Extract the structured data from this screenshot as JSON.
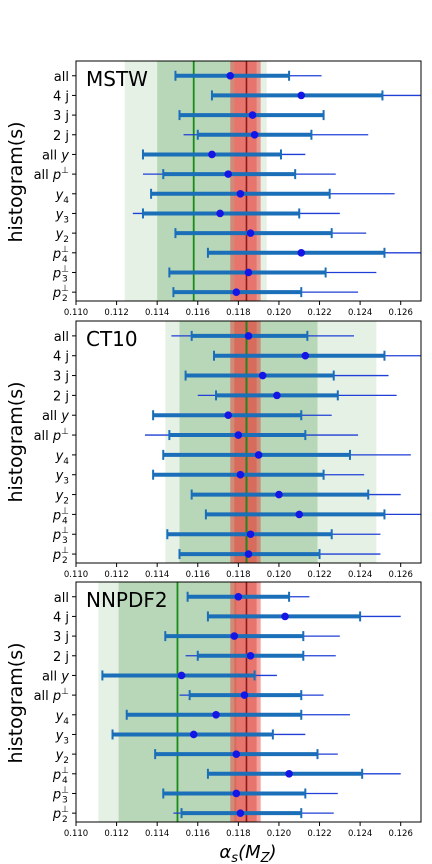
{
  "figure": {
    "ylabel": "histogram(s)",
    "xlabel": "αs(MZ)",
    "xlabel_main": "α",
    "xlabel_sub": "s",
    "xlabel_open": "(M",
    "xlabel_sub2": "Z",
    "xlabel_close": ")"
  },
  "chart_data": [
    {
      "type": "scatter",
      "title": "MSTW",
      "xlim": [
        0.11,
        0.127
      ],
      "xticks": [
        "0.110",
        "0.112",
        "0.114",
        "0.116",
        "0.118",
        "0.120",
        "0.122",
        "0.124",
        "0.126"
      ],
      "ylabel": "histogram(s)",
      "categories": [
        "all",
        "4 j",
        "3 j",
        "2 j",
        "all y",
        "all p⊥",
        "y4",
        "y3",
        "y2",
        "p4⊥",
        "p3⊥",
        "p2⊥"
      ],
      "ref_line": 0.1184,
      "ref_band_inner": [
        0.1178,
        0.1189
      ],
      "ref_band_outer": [
        0.1176,
        0.1191
      ],
      "pdf_line": 0.1158,
      "pdf_band_inner": [
        0.114,
        0.1178
      ],
      "pdf_band_outer": [
        0.1124,
        0.1194
      ],
      "points": [
        {
          "label": "all",
          "value": 0.1176,
          "inner": [
            0.1149,
            0.1205
          ],
          "outer": [
            0.1149,
            0.1221
          ]
        },
        {
          "label": "4 j",
          "value": 0.1211,
          "inner": [
            0.1167,
            0.1251
          ],
          "outer": [
            0.1167,
            0.127
          ]
        },
        {
          "label": "3 j",
          "value": 0.1187,
          "inner": [
            0.1151,
            0.1222
          ],
          "outer": [
            0.1151,
            0.1222
          ]
        },
        {
          "label": "2 j",
          "value": 0.1188,
          "inner": [
            0.116,
            0.1216
          ],
          "outer": [
            0.1153,
            0.1244
          ]
        },
        {
          "label": "all y",
          "value": 0.1167,
          "inner": [
            0.1133,
            0.1201
          ],
          "outer": [
            0.1133,
            0.1213
          ]
        },
        {
          "label": "all p⊥",
          "value": 0.1175,
          "inner": [
            0.1143,
            0.1208
          ],
          "outer": [
            0.1133,
            0.1228
          ]
        },
        {
          "label": "y4",
          "value": 0.1181,
          "inner": [
            0.1137,
            0.1225
          ],
          "outer": [
            0.1137,
            0.1257
          ]
        },
        {
          "label": "y3",
          "value": 0.1171,
          "inner": [
            0.1133,
            0.121
          ],
          "outer": [
            0.1128,
            0.123
          ]
        },
        {
          "label": "y2",
          "value": 0.1186,
          "inner": [
            0.1149,
            0.1226
          ],
          "outer": [
            0.1149,
            0.1243
          ]
        },
        {
          "label": "p4⊥",
          "value": 0.1211,
          "inner": [
            0.1165,
            0.1252
          ],
          "outer": [
            0.1165,
            0.127
          ]
        },
        {
          "label": "p3⊥",
          "value": 0.1185,
          "inner": [
            0.1146,
            0.1223
          ],
          "outer": [
            0.1146,
            0.1248
          ]
        },
        {
          "label": "p2⊥",
          "value": 0.1179,
          "inner": [
            0.1148,
            0.1211
          ],
          "outer": [
            0.1148,
            0.1239
          ]
        }
      ]
    },
    {
      "type": "scatter",
      "title": "CT10",
      "xlim": [
        0.11,
        0.127
      ],
      "xticks": [
        "0.110",
        "0.112",
        "0.114",
        "0.116",
        "0.118",
        "0.120",
        "0.122",
        "0.124",
        "0.126"
      ],
      "ylabel": "histogram(s)",
      "categories": [
        "all",
        "4 j",
        "3 j",
        "2 j",
        "all y",
        "all p⊥",
        "y4",
        "y3",
        "y2",
        "p4⊥",
        "p3⊥",
        "p2⊥"
      ],
      "ref_line": 0.1184,
      "ref_band_inner": [
        0.1178,
        0.1189
      ],
      "ref_band_outer": [
        0.1176,
        0.1191
      ],
      "pdf_line": 0.1184,
      "pdf_band_inner": [
        0.1151,
        0.1219
      ],
      "pdf_band_outer": [
        0.1144,
        0.1248
      ],
      "points": [
        {
          "label": "all",
          "value": 0.1185,
          "inner": [
            0.1157,
            0.1214
          ],
          "outer": [
            0.1147,
            0.1237
          ]
        },
        {
          "label": "4 j",
          "value": 0.1213,
          "inner": [
            0.1168,
            0.1252
          ],
          "outer": [
            0.1168,
            0.127
          ]
        },
        {
          "label": "3 j",
          "value": 0.1192,
          "inner": [
            0.1154,
            0.1227
          ],
          "outer": [
            0.1154,
            0.1254
          ]
        },
        {
          "label": "2 j",
          "value": 0.1199,
          "inner": [
            0.1169,
            0.1229
          ],
          "outer": [
            0.116,
            0.1258
          ]
        },
        {
          "label": "all y",
          "value": 0.1175,
          "inner": [
            0.1138,
            0.1211
          ],
          "outer": [
            0.1138,
            0.1226
          ]
        },
        {
          "label": "all p⊥",
          "value": 0.118,
          "inner": [
            0.1146,
            0.1213
          ],
          "outer": [
            0.1134,
            0.1239
          ]
        },
        {
          "label": "y4",
          "value": 0.119,
          "inner": [
            0.1143,
            0.1235
          ],
          "outer": [
            0.1143,
            0.1265
          ]
        },
        {
          "label": "y3",
          "value": 0.1181,
          "inner": [
            0.1138,
            0.1222
          ],
          "outer": [
            0.1138,
            0.1242
          ]
        },
        {
          "label": "y2",
          "value": 0.12,
          "inner": [
            0.1157,
            0.1244
          ],
          "outer": [
            0.1157,
            0.126
          ]
        },
        {
          "label": "p4⊥",
          "value": 0.121,
          "inner": [
            0.1164,
            0.1252
          ],
          "outer": [
            0.1164,
            0.127
          ]
        },
        {
          "label": "p3⊥",
          "value": 0.1186,
          "inner": [
            0.1145,
            0.1226
          ],
          "outer": [
            0.1145,
            0.125
          ]
        },
        {
          "label": "p2⊥",
          "value": 0.1185,
          "inner": [
            0.1151,
            0.122
          ],
          "outer": [
            0.1151,
            0.125
          ]
        }
      ]
    },
    {
      "type": "scatter",
      "title": "NNPDF2",
      "xlim": [
        0.11,
        0.127
      ],
      "xticks": [
        "0.110",
        "0.112",
        "0.114",
        "0.116",
        "0.118",
        "0.120",
        "0.122",
        "0.124",
        "0.126"
      ],
      "ylabel": "histogram(s)",
      "categories": [
        "all",
        "4 j",
        "3 j",
        "2 j",
        "all y",
        "all p⊥",
        "y4",
        "y3",
        "y2",
        "p4⊥",
        "p3⊥",
        "p2⊥"
      ],
      "ref_line": 0.1184,
      "ref_band_inner": [
        0.1178,
        0.1189
      ],
      "ref_band_outer": [
        0.1176,
        0.1191
      ],
      "pdf_line": 0.115,
      "pdf_band_inner": [
        0.1121,
        0.1179
      ],
      "pdf_band_outer": [
        0.1111,
        0.1189
      ],
      "points": [
        {
          "label": "all",
          "value": 0.118,
          "inner": [
            0.1155,
            0.1205
          ],
          "outer": [
            0.1155,
            0.1215
          ]
        },
        {
          "label": "4 j",
          "value": 0.1203,
          "inner": [
            0.1165,
            0.124
          ],
          "outer": [
            0.1165,
            0.126
          ]
        },
        {
          "label": "3 j",
          "value": 0.1178,
          "inner": [
            0.1144,
            0.1212
          ],
          "outer": [
            0.1144,
            0.123
          ]
        },
        {
          "label": "2 j",
          "value": 0.1186,
          "inner": [
            0.116,
            0.1212
          ],
          "outer": [
            0.1154,
            0.1228
          ]
        },
        {
          "label": "all y",
          "value": 0.1152,
          "inner": [
            0.1113,
            0.1188
          ],
          "outer": [
            0.1113,
            0.1199
          ]
        },
        {
          "label": "all p⊥",
          "value": 0.1183,
          "inner": [
            0.1156,
            0.1211
          ],
          "outer": [
            0.1151,
            0.1222
          ]
        },
        {
          "label": "y4",
          "value": 0.1169,
          "inner": [
            0.1125,
            0.1211
          ],
          "outer": [
            0.1125,
            0.1235
          ]
        },
        {
          "label": "y3",
          "value": 0.1158,
          "inner": [
            0.1118,
            0.1197
          ],
          "outer": [
            0.1118,
            0.1213
          ]
        },
        {
          "label": "y2",
          "value": 0.1179,
          "inner": [
            0.1139,
            0.1219
          ],
          "outer": [
            0.1139,
            0.1229
          ]
        },
        {
          "label": "p4⊥",
          "value": 0.1205,
          "inner": [
            0.1165,
            0.1241
          ],
          "outer": [
            0.1165,
            0.126
          ]
        },
        {
          "label": "p3⊥",
          "value": 0.1179,
          "inner": [
            0.1143,
            0.1213
          ],
          "outer": [
            0.1143,
            0.1229
          ]
        },
        {
          "label": "p2⊥",
          "value": 0.1181,
          "inner": [
            0.1152,
            0.1211
          ],
          "outer": [
            0.1148,
            0.1227
          ]
        }
      ]
    }
  ]
}
